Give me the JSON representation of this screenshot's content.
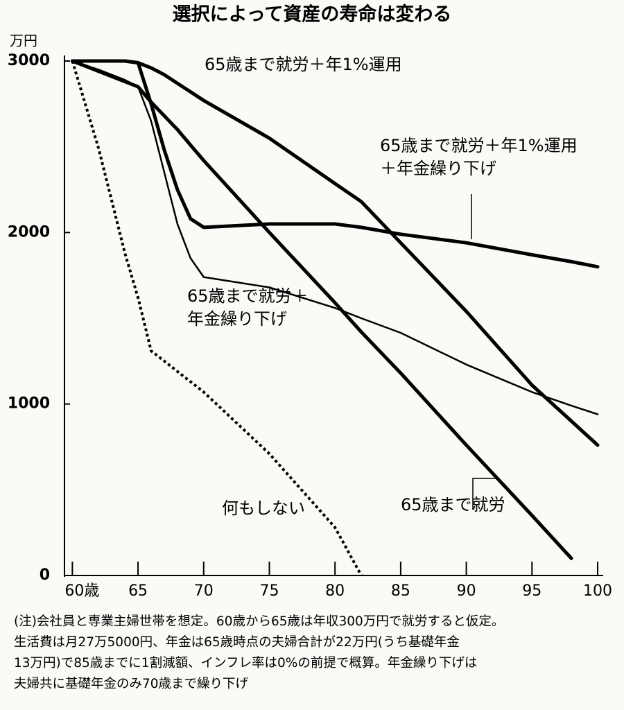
{
  "chart_data": {
    "type": "line",
    "title": "選択によって資産の寿命は変わる",
    "y_unit": "万円",
    "x": [
      60,
      62,
      64,
      65,
      66,
      67,
      68,
      69,
      70,
      75,
      80,
      82,
      85,
      90,
      95,
      98,
      100
    ],
    "series": [
      {
        "name": "65歳まで就労＋年1%運用",
        "color": "#000000",
        "width": 5,
        "dashed": false,
        "values": [
          3000,
          3000,
          3000,
          2990,
          2960,
          2920,
          2870,
          2820,
          2770,
          2550,
          2285,
          2180,
          1940,
          1540,
          1110,
          900,
          760
        ]
      },
      {
        "name": "65歳まで就労＋年1%運用\n＋年金繰り下げ",
        "color": "#000000",
        "width": 5,
        "dashed": false,
        "values": [
          3000,
          3000,
          3000,
          2990,
          2750,
          2480,
          2250,
          2080,
          2030,
          2050,
          2050,
          2030,
          1990,
          1940,
          1870,
          1830,
          1800
        ]
      },
      {
        "name": "65歳まで就労＋\n年金繰り下げ",
        "color": "#000000",
        "width": 2.5,
        "dashed": false,
        "values": [
          3000,
          2950,
          2890,
          2850,
          2650,
          2350,
          2050,
          1850,
          1740,
          1680,
          1560,
          1500,
          1415,
          1230,
          1070,
          990,
          940
        ]
      },
      {
        "name": "65歳まで就労",
        "color": "#000000",
        "width": 5,
        "dashed": false,
        "values": [
          3000,
          2940,
          2880,
          2850,
          2760,
          2680,
          2600,
          2510,
          2420,
          2000,
          1590,
          1420,
          1180,
          760,
          350,
          100,
          null
        ]
      },
      {
        "name": "何もしない",
        "color": "#000000",
        "width": 4,
        "dashed": true,
        "values": [
          3000,
          2490,
          1880,
          1620,
          1310,
          1250,
          1190,
          1130,
          1070,
          710,
          280,
          0,
          null,
          null,
          null,
          null,
          null
        ]
      }
    ],
    "xlim": [
      59.4,
      100
    ],
    "xticks": [
      {
        "value": 60,
        "label": "60歳"
      },
      65,
      70,
      75,
      80,
      85,
      90,
      95,
      100
    ],
    "ylim": [
      0,
      3000
    ],
    "yticks": [
      0,
      1000,
      2000,
      3000
    ],
    "note": "(注)会社員と専業主婦世帯を想定。60歳から65歳は年収300万円で就労すると仮定。\n生活費は月27万5000円、年金は65歳時点の夫婦合計が22万円(うち基礎年金\n13万円)で85歳までに1割減額、インフレ率は0%の前提で概算。年金繰り下げは\n夫婦共に基礎年金のみ70歳まで繰り下げ"
  }
}
